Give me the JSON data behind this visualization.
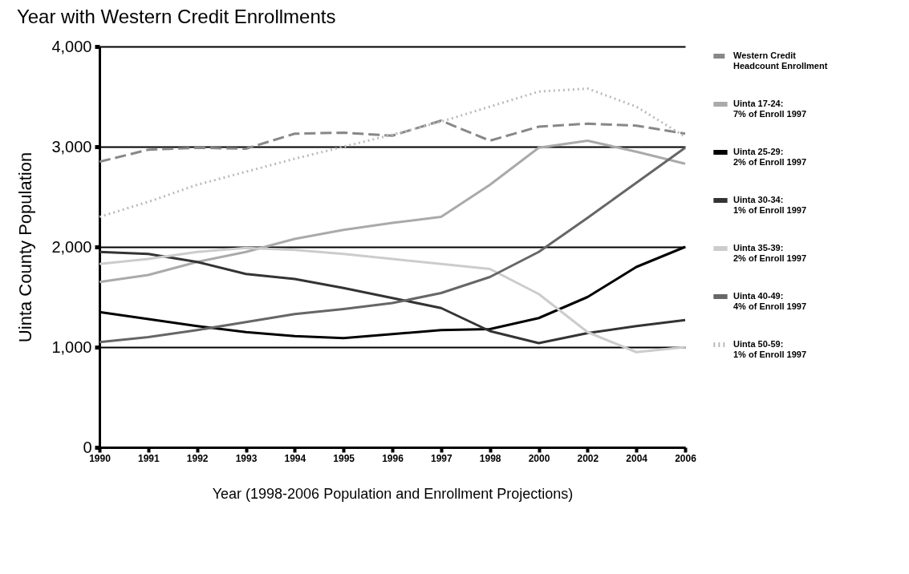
{
  "chart_data": {
    "type": "line",
    "title": "Year with Western Credit Enrollments",
    "xlabel": "Year (1998-2006 Population and Enrollment Projections)",
    "ylabel": "Uinta County Population",
    "categories": [
      "1990",
      "1991",
      "1992",
      "1993",
      "1994",
      "1995",
      "1996",
      "1997",
      "1998",
      "2000",
      "2002",
      "2004",
      "2006"
    ],
    "series": [
      {
        "name": "Western Credit Headcount Enrollment",
        "color": "#888888",
        "line_style": "dashed",
        "values": [
          2850,
          2970,
          2990,
          2980,
          3130,
          3140,
          3110,
          3260,
          3060,
          3200,
          3230,
          3210,
          3130
        ]
      },
      {
        "name": "Uinta 17-24: 7% of Enroll 1997",
        "color": "#aaaaaa",
        "line_style": "solid",
        "values": [
          1650,
          1720,
          1850,
          1950,
          2080,
          2170,
          2240,
          2300,
          2620,
          2990,
          3060,
          2950,
          2830
        ]
      },
      {
        "name": "Uinta 25-29: 2% of Enroll 1997",
        "color": "#000000",
        "line_style": "solid",
        "values": [
          1350,
          1280,
          1210,
          1150,
          1110,
          1090,
          1130,
          1170,
          1180,
          1290,
          1500,
          1800,
          2000
        ]
      },
      {
        "name": "Uinta 30-34: 1% of Enroll 1997",
        "color": "#333333",
        "line_style": "solid",
        "values": [
          1950,
          1930,
          1850,
          1730,
          1680,
          1590,
          1490,
          1390,
          1160,
          1040,
          1140,
          1210,
          1270
        ]
      },
      {
        "name": "Uinta 35-39: 2% of Enroll 1997",
        "color": "#cccccc",
        "line_style": "solid",
        "values": [
          1830,
          1880,
          1950,
          1990,
          1970,
          1930,
          1880,
          1830,
          1780,
          1530,
          1150,
          950,
          1000
        ]
      },
      {
        "name": "Uinta 40-49: 4% of Enroll 1997",
        "color": "#666666",
        "line_style": "solid",
        "values": [
          1050,
          1100,
          1170,
          1250,
          1330,
          1380,
          1440,
          1540,
          1700,
          1950,
          2290,
          2640,
          2990
        ]
      },
      {
        "name": "Uinta 50-59: 1% of Enroll 1997",
        "color": "#bbbbbb",
        "line_style": "dotted",
        "values": [
          2300,
          2450,
          2620,
          2750,
          2880,
          3000,
          3120,
          3250,
          3400,
          3550,
          3580,
          3400,
          3100
        ]
      }
    ],
    "ylim": [
      0,
      4000
    ],
    "yticks": [
      0,
      {
        "value": 1000,
        "label": "1,000"
      },
      {
        "value": 2000,
        "label": "2,000"
      },
      {
        "value": 3000,
        "label": "3,000"
      },
      {
        "value": 4000,
        "label": "4,000"
      }
    ],
    "grid": "y",
    "legend": "right",
    "marker": "none"
  }
}
